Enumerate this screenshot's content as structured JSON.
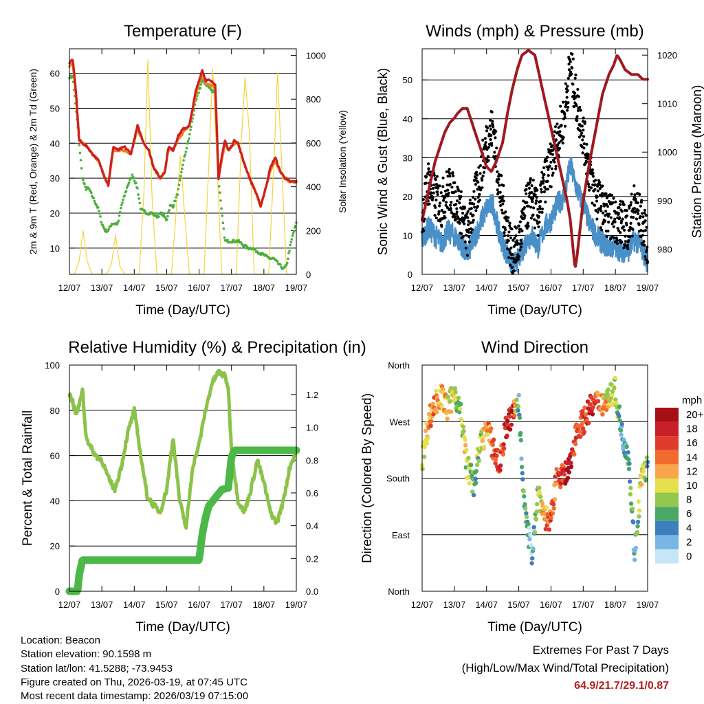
{
  "chart_data": [
    {
      "type": "line",
      "title": "Temperature (F)",
      "xlabel": "Time (Day/UTC)",
      "ylabel": "2m & 9m T (Red, Orange) & 2m Td (Green)",
      "y2label": "Solar Insolation (Yellow)",
      "ylim": [
        2.5,
        67
      ],
      "y2lim": [
        0,
        1030
      ],
      "xlim": [
        0,
        7
      ],
      "xticks": [
        "12/07",
        "13/07",
        "14/07",
        "15/07",
        "16/07",
        "17/07",
        "18/07",
        "19/07"
      ],
      "yticks": [
        10,
        20,
        30,
        40,
        50,
        60
      ],
      "y2ticks": [
        0,
        200,
        400,
        600,
        800,
        1000
      ],
      "series": [
        {
          "name": "2m T",
          "color": "#cc2020",
          "x": [
            0,
            0.1,
            0.2,
            0.3,
            0.4,
            0.55,
            0.7,
            0.9,
            1.1,
            1.2,
            1.35,
            1.5,
            1.7,
            1.9,
            2.1,
            2.3,
            2.45,
            2.6,
            2.8,
            2.95,
            3.05,
            3.2,
            3.35,
            3.5,
            3.7,
            3.9,
            4.1,
            4.2,
            4.3,
            4.5,
            4.6,
            4.7,
            4.8,
            4.9,
            5.0,
            5.1,
            5.2,
            5.4,
            5.6,
            5.75,
            5.9,
            6.05,
            6.2,
            6.35,
            6.5,
            6.65,
            6.8,
            6.9,
            7.0
          ],
          "values": [
            63,
            64,
            55,
            41,
            40,
            39,
            37,
            35,
            30,
            28,
            39,
            38,
            39,
            37,
            45,
            40,
            38,
            33,
            30,
            32,
            39,
            38,
            42,
            44,
            45,
            55,
            61,
            58,
            58,
            57,
            30,
            36,
            41,
            38,
            39,
            41,
            40,
            34,
            29,
            26,
            22,
            27,
            33,
            36,
            32,
            30,
            29,
            29,
            29
          ]
        },
        {
          "name": "9m T",
          "color": "#f08020",
          "x": [
            0,
            0.1,
            0.2,
            0.3,
            0.4,
            0.55,
            0.7,
            0.9,
            1.1,
            1.2,
            1.35,
            1.5,
            1.7,
            1.9,
            2.1,
            2.3,
            2.45,
            2.6,
            2.8,
            2.95,
            3.05,
            3.2,
            3.35,
            3.5,
            3.7,
            3.9,
            4.1,
            4.2,
            4.3,
            4.5,
            4.6,
            4.7,
            4.8,
            4.9,
            5.0,
            5.1,
            5.2,
            5.4,
            5.6,
            5.75,
            5.9,
            6.05,
            6.2,
            6.35,
            6.5,
            6.65,
            6.8,
            6.9,
            7.0
          ],
          "values": [
            62,
            63,
            54,
            41,
            40,
            39,
            37,
            35,
            30,
            28,
            38,
            38,
            38,
            37,
            44,
            40,
            38,
            33,
            30,
            32,
            38,
            38,
            41,
            43,
            45,
            54,
            60,
            57,
            57,
            56,
            30,
            35,
            40,
            38,
            39,
            40,
            40,
            34,
            29,
            26,
            22,
            27,
            32,
            35,
            32,
            30,
            29,
            29,
            29
          ]
        },
        {
          "name": "2m Td",
          "color": "#4caf3c",
          "x": [
            0,
            0.1,
            0.2,
            0.3,
            0.4,
            0.5,
            0.6,
            0.75,
            0.9,
            1.0,
            1.1,
            1.2,
            1.3,
            1.5,
            1.6,
            1.8,
            1.95,
            2.1,
            2.2,
            2.4,
            2.55,
            2.7,
            2.85,
            3.0,
            3.1,
            3.2,
            3.35,
            3.5,
            3.7,
            3.9,
            4.1,
            4.3,
            4.4,
            4.5,
            4.6,
            4.7,
            4.8,
            4.9,
            5.0,
            5.2,
            5.35,
            5.5,
            5.65,
            5.8,
            6.0,
            6.2,
            6.3,
            6.4,
            6.5,
            6.6,
            6.7,
            6.8,
            6.9,
            7.0
          ],
          "values": [
            59,
            59,
            50,
            40,
            30,
            27,
            27,
            24,
            21,
            17,
            15,
            15,
            17,
            17,
            22,
            28,
            31,
            27,
            21,
            20,
            20,
            19,
            20,
            18,
            22,
            22,
            26,
            34,
            42,
            52,
            58,
            56,
            55,
            55,
            30,
            20,
            12,
            12,
            12,
            12,
            11,
            10,
            10,
            9,
            8,
            7,
            7,
            6,
            5,
            4,
            5,
            10,
            14,
            17
          ]
        },
        {
          "name": "Solar Insolation",
          "color": "#f5d33c",
          "axis": "y2",
          "x": [
            0,
            0.15,
            0.3,
            0.42,
            0.55,
            0.7,
            1.0,
            1.15,
            1.3,
            1.42,
            1.55,
            1.7,
            2.0,
            2.15,
            2.3,
            2.42,
            2.55,
            2.7,
            3.0,
            3.15,
            3.3,
            3.42,
            3.55,
            3.7,
            4.0,
            4.15,
            4.3,
            4.42,
            4.55,
            4.7,
            5.0,
            5.15,
            5.3,
            5.42,
            5.55,
            5.7,
            6.0,
            6.15,
            6.3,
            6.42,
            6.55,
            6.7,
            7.0
          ],
          "values": [
            0,
            0,
            60,
            200,
            60,
            0,
            0,
            0,
            50,
            180,
            40,
            0,
            0,
            0,
            380,
            980,
            350,
            0,
            0,
            0,
            300,
            540,
            280,
            0,
            0,
            0,
            500,
            940,
            520,
            0,
            0,
            0,
            600,
            900,
            650,
            0,
            0,
            0,
            480,
            920,
            500,
            0,
            0
          ]
        }
      ]
    },
    {
      "type": "scatter",
      "title": "Winds (mph) & Pressure (mb)",
      "xlabel": "Time (Day/UTC)",
      "ylabel": "Sonic Wind & Gust (Blue, Black)",
      "y2label": "Station Pressure (Maroon)",
      "ylim": [
        0,
        58
      ],
      "y2lim": [
        974.8,
        1021.3
      ],
      "xlim": [
        0,
        7
      ],
      "xticks": [
        "12/07",
        "13/07",
        "14/07",
        "15/07",
        "16/07",
        "17/07",
        "18/07",
        "19/07"
      ],
      "yticks": [
        0,
        10,
        20,
        30,
        40,
        50
      ],
      "y2ticks": [
        980,
        990,
        1000,
        1010,
        1020
      ],
      "series": [
        {
          "name": "Station Pressure",
          "color": "#a0191e",
          "axis": "y2",
          "type": "line",
          "x": [
            0,
            0.1,
            0.2,
            0.3,
            0.4,
            0.55,
            0.7,
            0.85,
            1.0,
            1.1,
            1.25,
            1.4,
            1.55,
            1.7,
            1.85,
            2.0,
            2.15,
            2.3,
            2.5,
            2.65,
            2.8,
            2.95,
            3.1,
            3.3,
            3.5,
            3.6,
            3.7,
            3.9,
            4.1,
            4.3,
            4.5,
            4.6,
            4.7,
            4.75,
            4.8,
            4.9,
            5.0,
            5.2,
            5.4,
            5.6,
            5.8,
            5.95,
            6.05,
            6.15,
            6.3,
            6.5,
            6.7,
            6.85,
            7.0
          ],
          "values": [
            986,
            989,
            992,
            995,
            998,
            1001,
            1004,
            1006,
            1007,
            1008,
            1009,
            1009,
            1006,
            1003,
            1000,
            997,
            996,
            998,
            1002,
            1008,
            1013,
            1017,
            1020,
            1021,
            1020,
            1017,
            1014,
            1008,
            1002,
            996,
            990,
            986,
            979,
            976,
            978,
            984,
            990,
            998,
            1005,
            1012,
            1016,
            1018,
            1020,
            1019,
            1017,
            1016,
            1016,
            1015,
            1015
          ]
        },
        {
          "name": "Gust",
          "color": "#000000",
          "x": [
            0,
            0.2,
            0.4,
            0.6,
            0.8,
            1.0,
            1.2,
            1.4,
            1.6,
            1.8,
            2.0,
            2.2,
            2.4,
            2.6,
            2.8,
            3.0,
            3.2,
            3.4,
            3.6,
            3.8,
            4.0,
            4.2,
            4.4,
            4.6,
            4.8,
            5.0,
            5.2,
            5.4,
            5.6,
            5.8,
            6.0,
            6.2,
            6.4,
            6.6,
            6.8,
            7.0
          ],
          "values": [
            15,
            24,
            20,
            18,
            22,
            20,
            16,
            10,
            18,
            25,
            34,
            38,
            22,
            14,
            5,
            8,
            16,
            20,
            15,
            24,
            28,
            35,
            40,
            54,
            44,
            36,
            26,
            20,
            17,
            15,
            14,
            13,
            12,
            18,
            14,
            8
          ]
        },
        {
          "name": "Sonic Wind",
          "color": "#4a90c8",
          "x": [
            0,
            0.2,
            0.4,
            0.6,
            0.8,
            1.0,
            1.2,
            1.4,
            1.6,
            1.8,
            2.0,
            2.2,
            2.4,
            2.6,
            2.8,
            3.0,
            3.2,
            3.4,
            3.6,
            3.8,
            4.0,
            4.2,
            4.4,
            4.6,
            4.8,
            5.0,
            5.2,
            5.4,
            5.6,
            5.8,
            6.0,
            6.2,
            6.4,
            6.6,
            6.8,
            7.0
          ],
          "values": [
            9,
            12,
            10,
            8,
            11,
            10,
            8,
            5,
            9,
            13,
            17,
            18,
            10,
            6,
            2,
            4,
            8,
            10,
            7,
            12,
            14,
            18,
            20,
            28,
            22,
            18,
            13,
            10,
            8,
            7,
            7,
            6,
            6,
            9,
            7,
            3
          ]
        }
      ]
    },
    {
      "type": "line",
      "title": "Relative Humidity (%) & Precipitation (in)",
      "xlabel": "Time (Day/UTC)",
      "ylabel": "Percent & Total Rainfall",
      "ylim": [
        0,
        100
      ],
      "y2lim": [
        0,
        1.38
      ],
      "xlim": [
        0,
        7
      ],
      "xticks": [
        "12/07",
        "13/07",
        "14/07",
        "15/07",
        "16/07",
        "17/07",
        "18/07",
        "19/07"
      ],
      "yticks": [
        0,
        20,
        40,
        60,
        80,
        100
      ],
      "y2ticks": [
        0.0,
        0.2,
        0.4,
        0.6,
        0.8,
        1.0,
        1.2
      ],
      "series": [
        {
          "name": "Relative Humidity",
          "color": "#8bc34a",
          "x": [
            0,
            0.1,
            0.2,
            0.3,
            0.4,
            0.5,
            0.6,
            0.8,
            1.0,
            1.2,
            1.4,
            1.6,
            1.8,
            2.0,
            2.2,
            2.4,
            2.6,
            2.8,
            3.0,
            3.2,
            3.4,
            3.6,
            3.8,
            4.0,
            4.2,
            4.4,
            4.6,
            4.8,
            4.9,
            5.0,
            5.2,
            5.4,
            5.6,
            5.8,
            6.0,
            6.2,
            6.4,
            6.6,
            6.8,
            7.0
          ],
          "values": [
            87,
            84,
            78,
            82,
            90,
            70,
            65,
            60,
            58,
            50,
            45,
            55,
            70,
            80,
            60,
            42,
            38,
            35,
            45,
            68,
            40,
            28,
            55,
            65,
            80,
            92,
            97,
            95,
            90,
            62,
            40,
            35,
            45,
            58,
            48,
            35,
            30,
            40,
            55,
            62
          ]
        },
        {
          "name": "Total Precipitation",
          "color": "#4cb848",
          "axis": "y2",
          "x": [
            0,
            0.25,
            0.3,
            0.4,
            1.0,
            2.0,
            3.0,
            4.0,
            4.1,
            4.2,
            4.3,
            4.5,
            4.7,
            4.9,
            5.0,
            5.1,
            5.5,
            6.0,
            7.0
          ],
          "values": [
            0.0,
            0.0,
            0.1,
            0.19,
            0.19,
            0.19,
            0.19,
            0.19,
            0.35,
            0.45,
            0.52,
            0.57,
            0.62,
            0.63,
            0.82,
            0.86,
            0.86,
            0.86,
            0.86
          ]
        }
      ]
    },
    {
      "type": "scatter",
      "title": "Wind Direction",
      "xlabel": "Time (Day/UTC)",
      "ylabel": "Direction (Colored By Speed)",
      "ylim": [
        0,
        360
      ],
      "xlim": [
        0,
        7
      ],
      "xticks": [
        "12/07",
        "13/07",
        "14/07",
        "15/07",
        "16/07",
        "17/07",
        "18/07",
        "19/07"
      ],
      "yticks": [
        "North",
        "East",
        "South",
        "West",
        "North"
      ],
      "colorbar": {
        "title": "mph",
        "labels": [
          "20+",
          "18",
          "16",
          "14",
          "12",
          "10",
          "8",
          "6",
          "4",
          "2",
          "0"
        ],
        "colors": [
          "#a50f15",
          "#c8202a",
          "#e03a2c",
          "#f26b2e",
          "#f9a54b",
          "#e6e04e",
          "#92c94c",
          "#4aa867",
          "#3d7fbf",
          "#7ab6e3",
          "#c6e6f8"
        ]
      },
      "series": [
        {
          "name": "Direction",
          "x": [
            0,
            0.2,
            0.4,
            0.6,
            0.8,
            1.0,
            1.2,
            1.4,
            1.6,
            1.8,
            2.0,
            2.2,
            2.4,
            2.6,
            2.8,
            3.0,
            3.2,
            3.4,
            3.6,
            3.8,
            4.0,
            4.2,
            4.4,
            4.6,
            4.8,
            5.0,
            5.2,
            5.4,
            5.6,
            5.8,
            6.0,
            6.2,
            6.4,
            6.6,
            6.8,
            7.0
          ],
          "values": [
            210,
            270,
            300,
            310,
            290,
            320,
            280,
            200,
            170,
            230,
            260,
            230,
            200,
            260,
            280,
            300,
            120,
            60,
            160,
            120,
            110,
            190,
            180,
            200,
            260,
            270,
            290,
            300,
            300,
            310,
            320,
            250,
            220,
            60,
            180,
            200
          ],
          "speeds": [
            8,
            12,
            14,
            12,
            10,
            9,
            8,
            10,
            6,
            8,
            12,
            14,
            16,
            18,
            20,
            4,
            6,
            2,
            8,
            12,
            16,
            14,
            18,
            20,
            16,
            14,
            18,
            14,
            12,
            10,
            8,
            4,
            6,
            4,
            10,
            6
          ]
        }
      ]
    }
  ],
  "info": {
    "location": "Location: Beacon",
    "elevation": "Station elevation: 90.1598 m",
    "latlon": "Station lat/lon: 41.5288; -73.9453",
    "created": "Figure created on Thu, 2026-03-19, at 07:45 UTC",
    "recent": "Most recent data timestamp: 2026/03/19 07:15:00"
  },
  "extremes": {
    "line1": "Extremes For Past 7 Days",
    "line2": "(High/Low/Max Wind/Total Precipitation)",
    "values": "64.9/21.7/29.1/0.87"
  }
}
